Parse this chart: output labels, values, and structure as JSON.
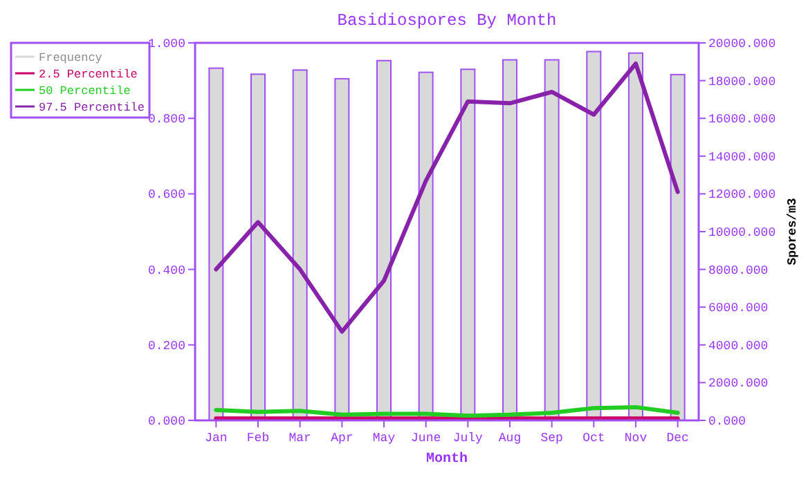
{
  "chart_data": {
    "type": "bar",
    "title": "Basidiospores By Month",
    "xlabel": "Month",
    "y2label": "Spores/m3",
    "categories": [
      "Jan",
      "Feb",
      "Mar",
      "Apr",
      "May",
      "June",
      "July",
      "Aug",
      "Sep",
      "Oct",
      "Nov",
      "Dec"
    ],
    "series": [
      {
        "name": "Frequency",
        "color": "#d9d9d9",
        "values": [
          0.933,
          0.917,
          0.928,
          0.905,
          0.953,
          0.922,
          0.93,
          0.955,
          0.955,
          0.977,
          0.973,
          0.916
        ]
      },
      {
        "name": "2.5 Percentile",
        "type": "line",
        "axis": "y2",
        "color": "#cc0066",
        "values": [
          100,
          100,
          100,
          100,
          100,
          100,
          100,
          100,
          100,
          100,
          100,
          100
        ]
      },
      {
        "name": "50 Percentile",
        "type": "line",
        "axis": "y2",
        "color": "#22cc22",
        "values": [
          550,
          450,
          500,
          300,
          350,
          350,
          250,
          300,
          400,
          650,
          700,
          400
        ]
      },
      {
        "name": "97.5 Percentile",
        "type": "line",
        "axis": "y2",
        "color": "#8822aa",
        "values": [
          8000,
          10500,
          8000,
          4700,
          7400,
          12700,
          16900,
          16800,
          17400,
          16200,
          18900,
          12100
        ]
      }
    ],
    "ylim": [
      0,
      1
    ],
    "yticks": [
      {
        "value": 0,
        "label": "0.000"
      },
      {
        "value": 0.2,
        "label": "0.200"
      },
      {
        "value": 0.4,
        "label": "0.400"
      },
      {
        "value": 0.6,
        "label": "0.600"
      },
      {
        "value": 0.8,
        "label": "0.800"
      },
      {
        "value": 1,
        "label": "1.000"
      }
    ],
    "y2lim": [
      0,
      20000
    ],
    "y2ticks": [
      {
        "value": 0,
        "label": "0.000"
      },
      {
        "value": 2000,
        "label": "2000.000"
      },
      {
        "value": 4000,
        "label": "4000.000"
      },
      {
        "value": 6000,
        "label": "6000.000"
      },
      {
        "value": 8000,
        "label": "8000.000"
      },
      {
        "value": 10000,
        "label": "10000.000"
      },
      {
        "value": 12000,
        "label": "12000.000"
      },
      {
        "value": 14000,
        "label": "14000.000"
      },
      {
        "value": 16000,
        "label": "16000.000"
      },
      {
        "value": 18000,
        "label": "18000.000"
      },
      {
        "value": 20000,
        "label": "20000.000"
      }
    ],
    "grid": false,
    "legend": "top left"
  }
}
